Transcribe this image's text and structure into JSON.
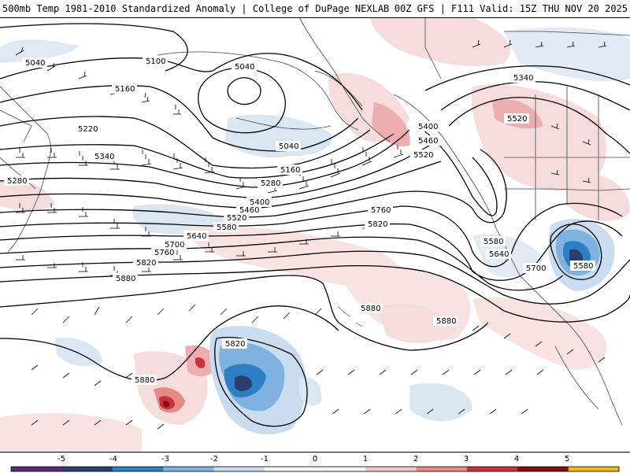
{
  "header": {
    "title": "500mb Temp 1981-2010 Standardized Anomaly | College of DuPage NEXLAB",
    "run_info": "00Z GFS | F111 Valid: 15Z THU NOV 20 2025"
  },
  "contour_labels": [
    {
      "id": "a",
      "text": "5040"
    },
    {
      "id": "b",
      "text": "5040"
    },
    {
      "id": "c",
      "text": "5100"
    },
    {
      "id": "d",
      "text": "5160"
    },
    {
      "id": "e",
      "text": "5220"
    },
    {
      "id": "f",
      "text": "5280"
    },
    {
      "id": "g",
      "text": "5340"
    },
    {
      "id": "h",
      "text": "5040"
    },
    {
      "id": "i",
      "text": "5160"
    },
    {
      "id": "j",
      "text": "5280"
    },
    {
      "id": "k",
      "text": "5400"
    },
    {
      "id": "l",
      "text": "5460"
    },
    {
      "id": "m",
      "text": "5520"
    },
    {
      "id": "n",
      "text": "5580"
    },
    {
      "id": "o",
      "text": "5640"
    },
    {
      "id": "p",
      "text": "5700"
    },
    {
      "id": "q",
      "text": "5760"
    },
    {
      "id": "r",
      "text": "5820"
    },
    {
      "id": "s",
      "text": "5880"
    },
    {
      "id": "t",
      "text": "5400"
    },
    {
      "id": "u",
      "text": "5460"
    },
    {
      "id": "v",
      "text": "5520"
    },
    {
      "id": "w",
      "text": "5760"
    },
    {
      "id": "x",
      "text": "5820"
    },
    {
      "id": "y",
      "text": "5340"
    },
    {
      "id": "z",
      "text": "5520"
    },
    {
      "id": "aa",
      "text": "5580"
    },
    {
      "id": "ab",
      "text": "5640"
    },
    {
      "id": "ac",
      "text": "5700"
    },
    {
      "id": "ad",
      "text": "5580"
    },
    {
      "id": "ae",
      "text": "5880"
    },
    {
      "id": "af",
      "text": "5880"
    },
    {
      "id": "ag",
      "text": "5820"
    },
    {
      "id": "ah",
      "text": "5880"
    }
  ],
  "colorbar": {
    "ticks": [
      "-5",
      "-4",
      "-3",
      "-2",
      "-1",
      "0",
      "1",
      "2",
      "3",
      "4",
      "5"
    ],
    "colors": [
      "#5a2a7a",
      "#2a3f6e",
      "#2d7fc4",
      "#7fb2e0",
      "#c9dcf0",
      "#f4f4f4",
      "#f4f4f4",
      "#f2c8c6",
      "#e68a86",
      "#c8323a",
      "#8a0a14",
      "#f2b81e"
    ]
  }
}
